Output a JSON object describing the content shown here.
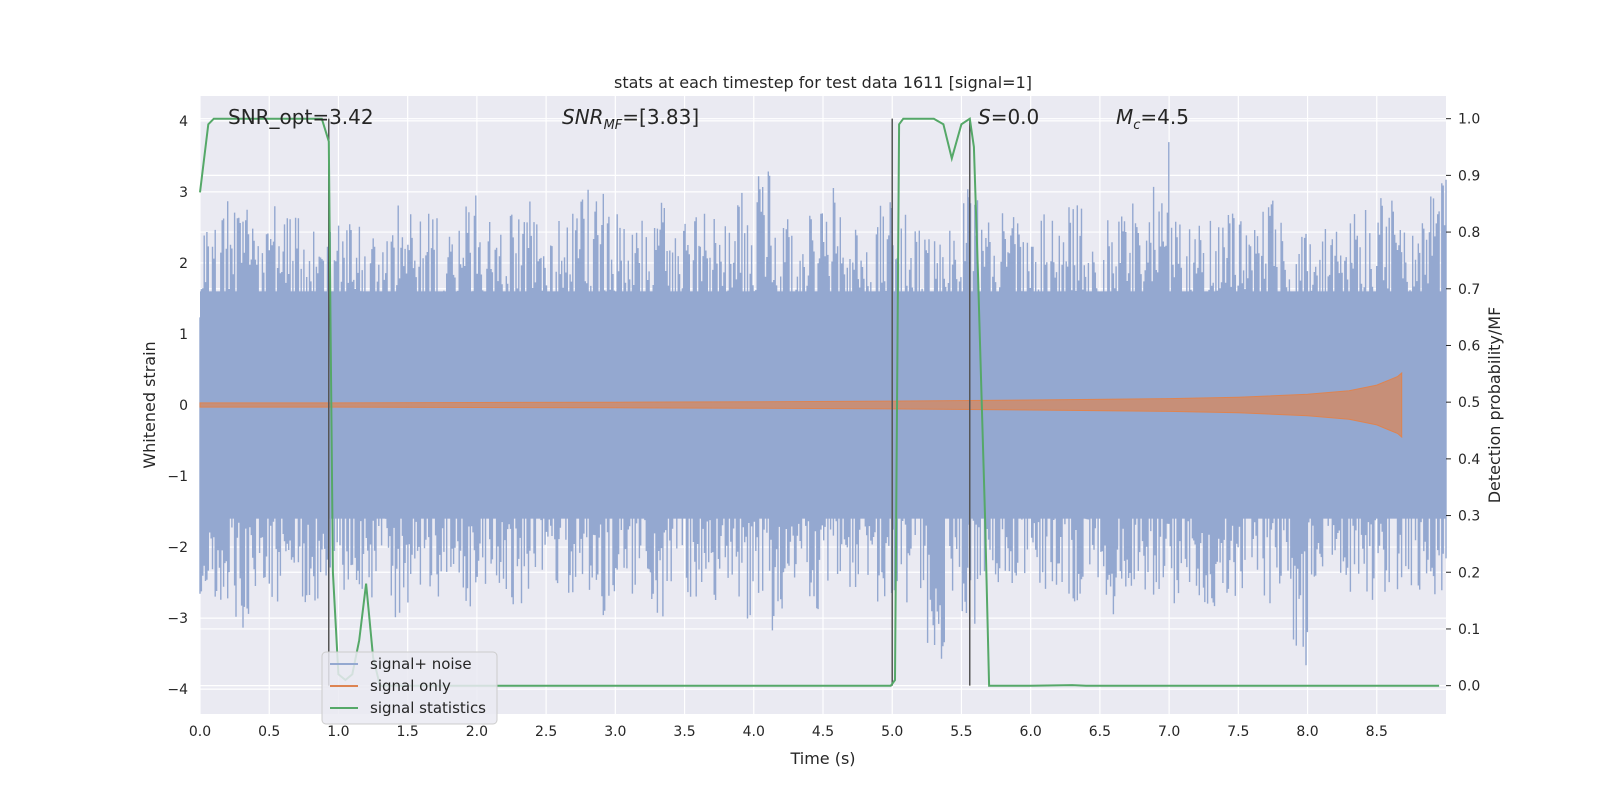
{
  "chart_data": {
    "type": "line",
    "title": "stats at each timestep for test data 1611 [signal=1]",
    "xlabel": "Time (s)",
    "ylabel_left": "Whitened strain",
    "ylabel_right": "Detection probability/MF",
    "xlim": [
      0.0,
      9.0
    ],
    "ylim_left": [
      -4.35,
      4.35
    ],
    "ylim_right": [
      -0.05,
      1.04
    ],
    "x_ticks": [
      "0.0",
      "0.5",
      "1.0",
      "1.5",
      "2.0",
      "2.5",
      "3.0",
      "3.5",
      "4.0",
      "4.5",
      "5.0",
      "5.5",
      "6.0",
      "6.5",
      "7.0",
      "7.5",
      "8.0",
      "8.5"
    ],
    "y_left_ticks": [
      "4",
      "3",
      "2",
      "1",
      "0",
      "−1",
      "−2",
      "−3",
      "−4"
    ],
    "y_right_ticks": [
      "1.0",
      "0.9",
      "0.8",
      "0.7",
      "0.6",
      "0.5",
      "0.4",
      "0.3",
      "0.2",
      "0.1",
      "0.0"
    ],
    "grid": true,
    "legend_position": "lower-left",
    "annotations": {
      "snr_opt": "SNR_opt=3.42",
      "snr_mf_base": "SNR",
      "snr_mf_sub": "MF",
      "snr_mf_rest": "=[3.83]",
      "s_label": "S",
      "s_value": "=0.0",
      "mc_base": "M",
      "mc_sub": "c",
      "mc_value": "=4.5"
    },
    "vertical_markers": [
      0.93,
      5.0,
      5.56
    ],
    "series": [
      {
        "name": "signal+ noise",
        "color": "#94a8d0",
        "axis": "left",
        "note_values": "noise band; typical envelope ±2.5, peaks near ±3.9",
        "envelope_upper": [
          2.7,
          2.9,
          3.0,
          2.6,
          2.8,
          2.7,
          2.9,
          2.5,
          2.6,
          2.6,
          2.4,
          3.1,
          2.8,
          2.7,
          2.5,
          3.2,
          2.6,
          2.7,
          2.9,
          3.0,
          2.6,
          2.8,
          3.3,
          3.0,
          2.7,
          2.6,
          2.9,
          2.5,
          2.7,
          2.8,
          2.6,
          3.0,
          3.3,
          2.7,
          2.5,
          2.8,
          3.2,
          2.6,
          2.4,
          2.9,
          2.8,
          2.6,
          2.5,
          2.7,
          3.1,
          2.6,
          2.8,
          2.6,
          2.7,
          2.7,
          2.9,
          2.5,
          2.6,
          3.0,
          2.6,
          3.9,
          2.8,
          2.7,
          2.6,
          2.7,
          2.6,
          3.0,
          2.7,
          2.6,
          2.5,
          2.6,
          2.7,
          2.8,
          3.1,
          2.7,
          2.6,
          3.2
        ],
        "envelope_lower": [
          -2.8,
          -2.9,
          -3.2,
          -2.6,
          -2.8,
          -2.7,
          -3.1,
          -2.5,
          -2.6,
          -2.8,
          -2.4,
          -3.0,
          -2.8,
          -2.7,
          -2.5,
          -3.0,
          -2.6,
          -2.7,
          -2.9,
          -3.0,
          -2.6,
          -2.8,
          -2.9,
          -3.0,
          -2.7,
          -2.6,
          -3.6,
          -2.5,
          -2.7,
          -2.8,
          -2.6,
          -3.2,
          -2.7,
          -3.3,
          -2.5,
          -3.0,
          -2.5,
          -2.6,
          -2.4,
          -2.9,
          -2.8,
          -2.6,
          -3.6,
          -2.7,
          -3.1,
          -2.6,
          -2.8,
          -2.6,
          -2.7,
          -2.7,
          -2.9,
          -2.5,
          -3.3,
          -2.6,
          -2.6,
          -2.7,
          -2.8,
          -2.7,
          -3.0,
          -2.7,
          -2.6,
          -3.0,
          -2.7,
          -4.0,
          -2.5,
          -2.6,
          -2.7,
          -2.8,
          -2.7,
          -2.7,
          -2.6,
          -2.8
        ]
      },
      {
        "name": "signal only",
        "color": "#dd8452",
        "axis": "left",
        "x": [
          0.0,
          1.0,
          2.0,
          3.0,
          4.0,
          5.0,
          6.0,
          7.0,
          7.5,
          8.0,
          8.3,
          8.5,
          8.6,
          8.65,
          8.68
        ],
        "amplitude": [
          0.03,
          0.03,
          0.035,
          0.04,
          0.045,
          0.055,
          0.07,
          0.09,
          0.11,
          0.15,
          0.2,
          0.28,
          0.36,
          0.4,
          0.45
        ]
      },
      {
        "name": "signal statistics",
        "color": "#55a868",
        "axis": "right",
        "x": [
          0.0,
          0.06,
          0.1,
          0.2,
          0.4,
          0.6,
          0.8,
          0.88,
          0.93,
          0.96,
          1.0,
          1.05,
          1.1,
          1.15,
          1.2,
          1.25,
          1.3,
          2.0,
          3.0,
          4.0,
          4.9,
          4.99,
          5.02,
          5.05,
          5.08,
          5.15,
          5.3,
          5.37,
          5.43,
          5.5,
          5.56,
          5.59,
          5.62,
          5.67,
          5.7,
          6.0,
          6.3,
          6.4,
          7.0,
          8.0,
          8.95
        ],
        "y": [
          0.87,
          0.99,
          1.0,
          1.0,
          1.0,
          1.0,
          1.0,
          1.0,
          0.96,
          0.2,
          0.02,
          0.01,
          0.02,
          0.08,
          0.18,
          0.05,
          0.0,
          0.0,
          0.0,
          0.0,
          0.0,
          0.0,
          0.01,
          0.99,
          1.0,
          1.0,
          1.0,
          0.99,
          0.93,
          0.99,
          1.0,
          0.95,
          0.72,
          0.3,
          0.0,
          0.0,
          0.001,
          0.0,
          0.0,
          0.0,
          0.0
        ]
      }
    ]
  }
}
